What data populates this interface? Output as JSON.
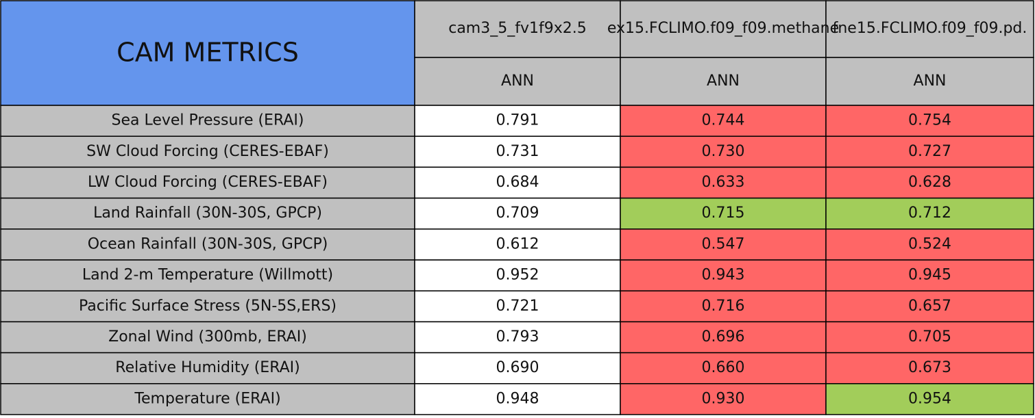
{
  "table": {
    "title": "CAM METRICS",
    "columns": [
      {
        "name": "cam3_5_fv1f9x2.5",
        "period": "ANN"
      },
      {
        "name": "ex15.FCLIMO.f09_f09.methane",
        "period": "ANN"
      },
      {
        "name": "fne15.FCLIMO.f09_f09.pd.",
        "period": "ANN"
      }
    ],
    "rows": [
      {
        "label": "Sea Level Pressure (ERAI)",
        "values": [
          "0.791",
          "0.744",
          "0.754"
        ],
        "colors": [
          "#ffffff",
          "#ff6666",
          "#ff6666"
        ]
      },
      {
        "label": "SW Cloud Forcing (CERES-EBAF)",
        "values": [
          "0.731",
          "0.730",
          "0.727"
        ],
        "colors": [
          "#ffffff",
          "#ff6666",
          "#ff6666"
        ]
      },
      {
        "label": "LW Cloud Forcing (CERES-EBAF)",
        "values": [
          "0.684",
          "0.633",
          "0.628"
        ],
        "colors": [
          "#ffffff",
          "#ff6666",
          "#ff6666"
        ]
      },
      {
        "label": "Land Rainfall (30N-30S, GPCP)",
        "values": [
          "0.709",
          "0.715",
          "0.712"
        ],
        "colors": [
          "#ffffff",
          "#a2cd5a",
          "#a2cd5a"
        ]
      },
      {
        "label": "Ocean Rainfall (30N-30S, GPCP)",
        "values": [
          "0.612",
          "0.547",
          "0.524"
        ],
        "colors": [
          "#ffffff",
          "#ff6666",
          "#ff6666"
        ]
      },
      {
        "label": "Land 2-m Temperature (Willmott)",
        "values": [
          "0.952",
          "0.943",
          "0.945"
        ],
        "colors": [
          "#ffffff",
          "#ff6666",
          "#ff6666"
        ]
      },
      {
        "label": "Pacific Surface Stress (5N-5S,ERS)",
        "values": [
          "0.721",
          "0.716",
          "0.657"
        ],
        "colors": [
          "#ffffff",
          "#ff6666",
          "#ff6666"
        ]
      },
      {
        "label": "Zonal Wind (300mb, ERAI)",
        "values": [
          "0.793",
          "0.696",
          "0.705"
        ],
        "colors": [
          "#ffffff",
          "#ff6666",
          "#ff6666"
        ]
      },
      {
        "label": "Relative Humidity (ERAI)",
        "values": [
          "0.690",
          "0.660",
          "0.673"
        ],
        "colors": [
          "#ffffff",
          "#ff6666",
          "#ff6666"
        ]
      },
      {
        "label": "Temperature (ERAI)",
        "values": [
          "0.948",
          "0.930",
          "0.954"
        ],
        "colors": [
          "#ffffff",
          "#ff6666",
          "#a2cd5a"
        ]
      }
    ]
  }
}
